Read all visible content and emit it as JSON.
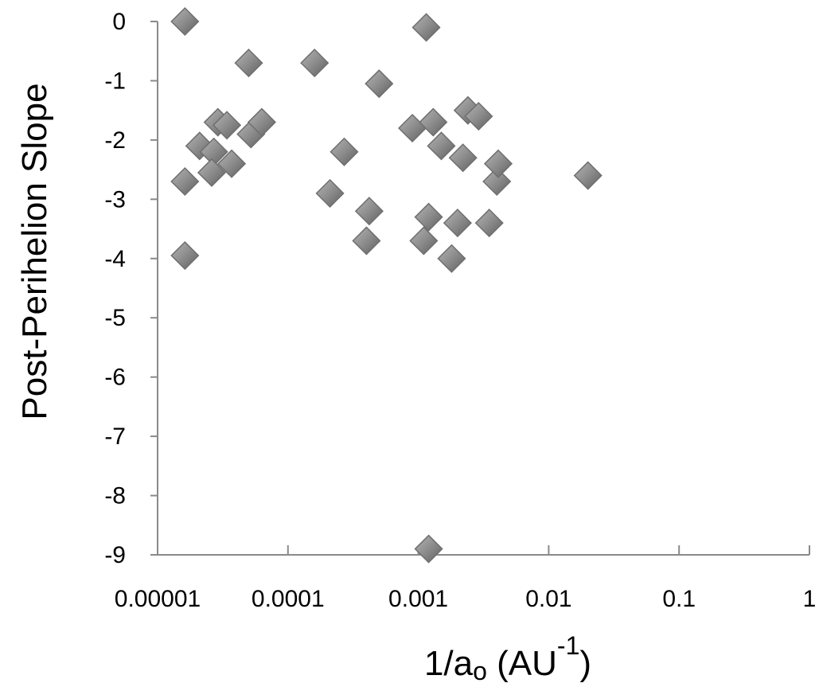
{
  "chart_data": {
    "type": "scatter",
    "title": "",
    "xlabel": {
      "prefix": "1/a",
      "subscript": "o",
      "middle": " (AU",
      "superscript": "-1",
      "suffix": ")"
    },
    "ylabel": "Post-Perihelion Slope",
    "xscale": "log",
    "xlim": [
      1e-05,
      1
    ],
    "ylim": [
      -9,
      0
    ],
    "xticks": [
      "0.00001",
      "0.0001",
      "0.001",
      "0.01",
      "0.1",
      "1"
    ],
    "yticks": [
      "0",
      "-1",
      "-2",
      "-3",
      "-4",
      "-5",
      "-6",
      "-7",
      "-8",
      "-9"
    ],
    "grid": false,
    "legend": "none",
    "marker": "diamond",
    "marker_color": "#8c8c8c",
    "series": [
      {
        "points": [
          {
            "x": 1.62e-05,
            "y": 0.0
          },
          {
            "x": 5e-05,
            "y": -0.7
          },
          {
            "x": 0.00016,
            "y": -0.7
          },
          {
            "x": 0.00115,
            "y": -0.1
          },
          {
            "x": 0.0005,
            "y": -1.05
          },
          {
            "x": 1.62e-05,
            "y": -2.7
          },
          {
            "x": 1.62e-05,
            "y": -3.95
          },
          {
            "x": 2.1e-05,
            "y": -2.1
          },
          {
            "x": 2.7e-05,
            "y": -2.2
          },
          {
            "x": 2.6e-05,
            "y": -2.55
          },
          {
            "x": 2.9e-05,
            "y": -1.7
          },
          {
            "x": 3.4e-05,
            "y": -1.75
          },
          {
            "x": 3.7e-05,
            "y": -2.4
          },
          {
            "x": 5.2e-05,
            "y": -1.9
          },
          {
            "x": 6.3e-05,
            "y": -1.7
          },
          {
            "x": 0.00021,
            "y": -2.9
          },
          {
            "x": 0.00027,
            "y": -2.2
          },
          {
            "x": 0.0004,
            "y": -3.7
          },
          {
            "x": 0.00042,
            "y": -3.2
          },
          {
            "x": 0.0009,
            "y": -1.8
          },
          {
            "x": 0.0011,
            "y": -3.7
          },
          {
            "x": 0.0012,
            "y": -3.3
          },
          {
            "x": 0.0013,
            "y": -1.7
          },
          {
            "x": 0.0015,
            "y": -2.1
          },
          {
            "x": 0.0018,
            "y": -4.0
          },
          {
            "x": 0.002,
            "y": -3.4
          },
          {
            "x": 0.0022,
            "y": -2.3
          },
          {
            "x": 0.0024,
            "y": -1.5
          },
          {
            "x": 0.0029,
            "y": -1.6
          },
          {
            "x": 0.0035,
            "y": -3.4
          },
          {
            "x": 0.004,
            "y": -2.7
          },
          {
            "x": 0.0041,
            "y": -2.4
          },
          {
            "x": 0.02,
            "y": -2.6
          },
          {
            "x": 0.0012,
            "y": -8.9
          }
        ]
      }
    ]
  }
}
